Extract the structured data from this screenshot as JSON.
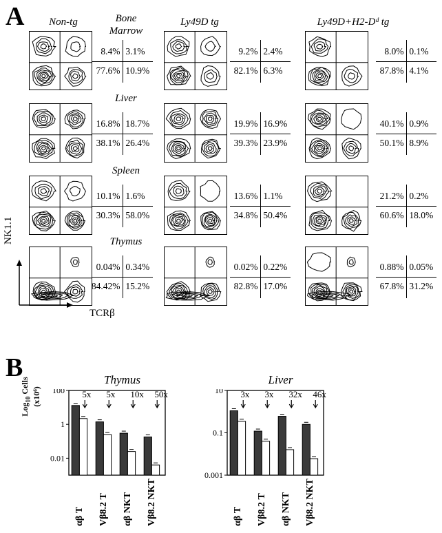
{
  "panel_a": {
    "letter": "A",
    "columns": [
      "Non-tg",
      "Ly49D tg",
      "Ly49D+H2-Dᵈ tg"
    ],
    "organs": [
      {
        "name_line1": "Bone",
        "name_line2": "Marrow",
        "tables": [
          [
            "8.4%",
            "3.1%",
            "77.6%",
            "10.9%"
          ],
          [
            "9.2%",
            "2.4%",
            "82.1%",
            "6.3%"
          ],
          [
            "8.0%",
            "0.1%",
            "87.8%",
            "4.1%"
          ]
        ]
      },
      {
        "name_line1": "Liver",
        "name_line2": "",
        "tables": [
          [
            "16.8%",
            "18.7%",
            "38.1%",
            "26.4%"
          ],
          [
            "19.9%",
            "16.9%",
            "39.3%",
            "23.9%"
          ],
          [
            "40.1%",
            "0.9%",
            "50.1%",
            "8.9%"
          ]
        ]
      },
      {
        "name_line1": "Spleen",
        "name_line2": "",
        "tables": [
          [
            "10.1%",
            "1.6%",
            "30.3%",
            "58.0%"
          ],
          [
            "13.6%",
            "1.1%",
            "34.8%",
            "50.4%"
          ],
          [
            "21.2%",
            "0.2%",
            "60.6%",
            "18.0%"
          ]
        ]
      },
      {
        "name_line1": "Thymus",
        "name_line2": "",
        "tables": [
          [
            "0.04%",
            "0.34%",
            "84.42%",
            "15.2%"
          ],
          [
            "0.02%",
            "0.22%",
            "82.8%",
            "17.0%"
          ],
          [
            "0.88%",
            "0.05%",
            "67.8%",
            "31.2%"
          ]
        ]
      }
    ],
    "y_axis": "NK1.1",
    "x_axis": "TCRβ"
  },
  "panel_b": {
    "letter": "B",
    "y_axis_label_line1": "Log",
    "y_axis_sub": "10",
    "y_axis_label_line1b": " Cells",
    "y_axis_label_line2": "(x10⁶)",
    "categories": [
      "αβ T",
      "Vβ8.2 T",
      "αβ NKT",
      "Vβ8.2 NKT"
    ],
    "bar_colors": {
      "filled": "#3a3a3a",
      "open": "#ffffff"
    }
  },
  "chart_data": [
    {
      "type": "bar",
      "title": "Thymus",
      "y_scale": "log",
      "ylim": [
        0.001,
        100
      ],
      "yticks": [
        "100",
        "1",
        "0.01"
      ],
      "categories": [
        "αβ T",
        "Vβ8.2 T",
        "αβ NKT",
        "Vβ8.2 NKT"
      ],
      "series": [
        {
          "values": [
            13,
            1.4,
            0.3,
            0.18
          ]
        },
        {
          "values": [
            2.2,
            0.25,
            0.025,
            0.004
          ]
        }
      ],
      "annotations": [
        "5x",
        "5x",
        "10x",
        "50x"
      ]
    },
    {
      "type": "bar",
      "title": "Liver",
      "y_scale": "log",
      "ylim": [
        0.001,
        10
      ],
      "yticks": [
        "10",
        "0.1",
        "0.001"
      ],
      "categories": [
        "αβ T",
        "Vβ8.2 T",
        "αβ NKT",
        "Vβ8.2 NKT"
      ],
      "series": [
        {
          "values": [
            1.1,
            0.12,
            0.6,
            0.25
          ]
        },
        {
          "values": [
            0.35,
            0.04,
            0.016,
            0.006
          ]
        }
      ],
      "annotations": [
        "3x",
        "3x",
        "32x",
        "46x"
      ]
    }
  ]
}
